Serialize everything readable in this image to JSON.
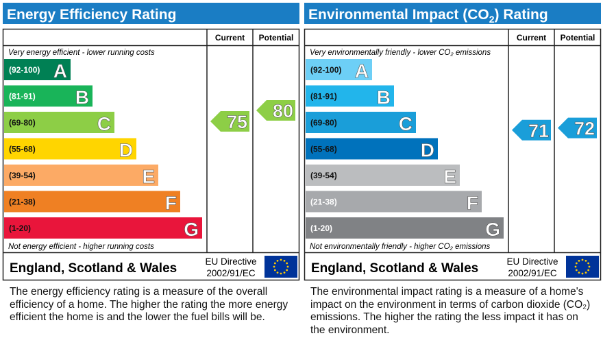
{
  "chart_data": [
    {
      "type": "bar",
      "title": "Energy Efficiency Rating",
      "title_sub": "",
      "col_current": "Current",
      "col_potential": "Potential",
      "top_note": "Very energy efficient - lower running costs",
      "bottom_note": "Not energy efficient - higher running costs",
      "bands": [
        {
          "range": "(92-100)",
          "letter": "A",
          "color": "#008054",
          "text": "#ffffff"
        },
        {
          "range": "(81-91)",
          "letter": "B",
          "color": "#19b459",
          "text": "#ffffff"
        },
        {
          "range": "(69-80)",
          "letter": "C",
          "color": "#8dce46",
          "text": "#111111"
        },
        {
          "range": "(55-68)",
          "letter": "D",
          "color": "#ffd500",
          "text": "#111111"
        },
        {
          "range": "(39-54)",
          "letter": "E",
          "color": "#fcaa65",
          "text": "#111111"
        },
        {
          "range": "(21-38)",
          "letter": "F",
          "color": "#ef8023",
          "text": "#111111"
        },
        {
          "range": "(1-20)",
          "letter": "G",
          "color": "#e9153b",
          "text": "#111111"
        }
      ],
      "current": 75,
      "potential": 80,
      "current_color": "#8dce46",
      "potential_color": "#8dce46",
      "footer": "England, Scotland & Wales",
      "directive_1": "EU Directive",
      "directive_2": "2002/91/EC",
      "description": "The energy efficiency rating is a measure of the overall efficiency of a home. The higher the rating the more energy efficient the home is and the lower the fuel bills will be."
    },
    {
      "type": "bar",
      "title": "Environmental Impact (CO",
      "title_sub": "2",
      "title_end": ") Rating",
      "col_current": "Current",
      "col_potential": "Potential",
      "top_note": "Very environmentally friendly - lower CO₂ emissions",
      "bottom_note": "Not environmentally friendly - higher CO₂ emissions",
      "bands": [
        {
          "range": "(92-100)",
          "letter": "A",
          "color": "#6dcff6",
          "text": "#111111"
        },
        {
          "range": "(81-91)",
          "letter": "B",
          "color": "#22b5eb",
          "text": "#111111"
        },
        {
          "range": "(69-80)",
          "letter": "C",
          "color": "#1a9ed9",
          "text": "#111111"
        },
        {
          "range": "(55-68)",
          "letter": "D",
          "color": "#0072bc",
          "text": "#111111"
        },
        {
          "range": "(39-54)",
          "letter": "E",
          "color": "#bbbdbf",
          "text": "#111111"
        },
        {
          "range": "(21-38)",
          "letter": "F",
          "color": "#a7a9ac",
          "text": "#ffffff"
        },
        {
          "range": "(1-20)",
          "letter": "G",
          "color": "#808285",
          "text": "#ffffff"
        }
      ],
      "current": 71,
      "potential": 72,
      "current_color": "#1a9ed9",
      "potential_color": "#1a9ed9",
      "footer": "England, Scotland & Wales",
      "directive_1": "EU Directive",
      "directive_2": "2002/91/EC",
      "description": "The environmental impact rating is a measure of a home's impact on the environment in terms of carbon dioxide (CO₂) emissions. The higher the rating the less impact it has on the environment."
    }
  ],
  "header_color": "#1a7dc4"
}
